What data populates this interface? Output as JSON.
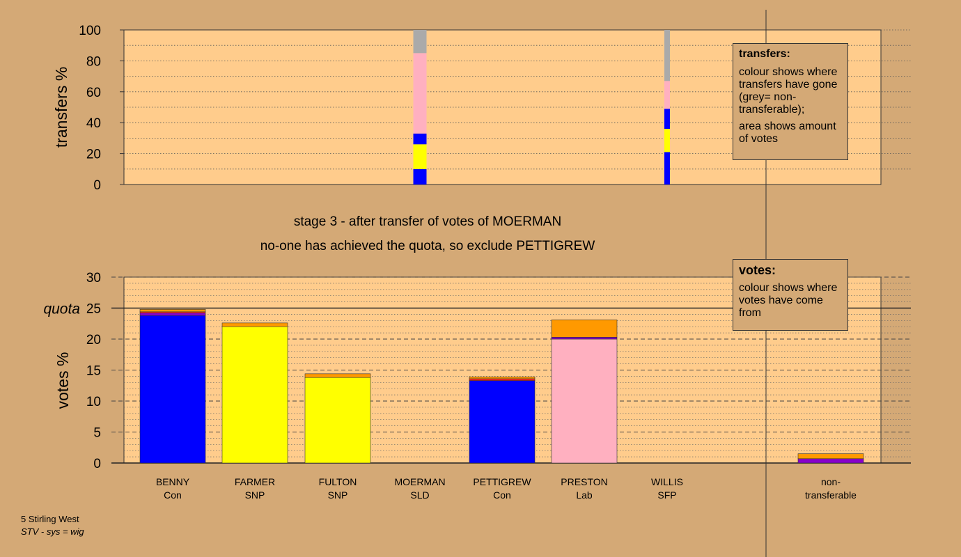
{
  "chart_data": [
    {
      "type": "bar",
      "stacked": true,
      "ylabel": "transfers %",
      "ylim": [
        0,
        100
      ],
      "yticks": [
        0,
        20,
        40,
        60,
        80,
        100
      ],
      "grid": "dotted horizontal",
      "columns": [
        {
          "category": "MOERMAN",
          "segments": [
            {
              "color": "#0000ff",
              "value": 10
            },
            {
              "color": "#ffff00",
              "value": 16
            },
            {
              "color": "#0000ff",
              "value": 7
            },
            {
              "color": "#ffb0c0",
              "value": 52
            },
            {
              "color": "#aaaaaa",
              "value": 15
            }
          ]
        },
        {
          "category": "WILLIS",
          "segments": [
            {
              "color": "#0000ff",
              "value": 21
            },
            {
              "color": "#ffff00",
              "value": 15
            },
            {
              "color": "#0000ff",
              "value": 13
            },
            {
              "color": "#ffb0c0",
              "value": 18
            },
            {
              "color": "#aaaaaa",
              "value": 33
            }
          ]
        }
      ]
    },
    {
      "type": "bar",
      "stacked": true,
      "ylabel": "votes %",
      "ylim": [
        0,
        30
      ],
      "yticks": [
        0,
        5,
        10,
        15,
        20,
        25,
        30
      ],
      "quota": 25,
      "quota_label": "quota",
      "categories": [
        "BENNY",
        "FARMER",
        "FULTON",
        "MOERMAN",
        "PETTIGREW",
        "PRESTON",
        "WILLIS",
        "non-transferable"
      ],
      "parties": [
        "Con",
        "SNP",
        "SNP",
        "SLD",
        "Con",
        "Lab",
        "SFP",
        ""
      ],
      "stacks": [
        [
          {
            "color": "#0000ff",
            "value": 23.8
          },
          {
            "color": "#8800cc",
            "value": 0.4
          },
          {
            "color": "#ff2222",
            "value": 0.2
          },
          {
            "color": "#ff9900",
            "value": 0.4
          }
        ],
        [
          {
            "color": "#ffff00",
            "value": 22.0
          },
          {
            "color": "#ff9900",
            "value": 0.6
          }
        ],
        [
          {
            "color": "#ffff00",
            "value": 13.8
          },
          {
            "color": "#ff9900",
            "value": 0.6
          }
        ],
        [],
        [
          {
            "color": "#0000ff",
            "value": 13.3
          },
          {
            "color": "#ff2222",
            "value": 0.3
          },
          {
            "color": "#ff9900",
            "value": 0.3
          }
        ],
        [
          {
            "color": "#ffb0c0",
            "value": 20.0
          },
          {
            "color": "#8800cc",
            "value": 0.3
          },
          {
            "color": "#ff9900",
            "value": 2.8
          }
        ],
        [],
        [
          {
            "color": "#8800cc",
            "value": 0.7
          },
          {
            "color": "#ff9900",
            "value": 0.8
          }
        ]
      ]
    }
  ],
  "captions": {
    "line1": "stage 3 - after transfer of votes of MOERMAN",
    "line2": "no-one has achieved the quota, so exclude PETTIGREW"
  },
  "legend_transfers": {
    "title": "transfers:",
    "text1": "colour shows where transfers have gone (grey= non-transferable);",
    "text2": "area shows amount of votes"
  },
  "legend_votes": {
    "title": "votes:",
    "text1": "colour shows where votes have come from"
  },
  "footer": {
    "line1": "5 Stirling West",
    "line2": "STV - sys = wig"
  },
  "colors": {
    "background": "#d4a976",
    "plot_area": "#ffcc8c"
  }
}
